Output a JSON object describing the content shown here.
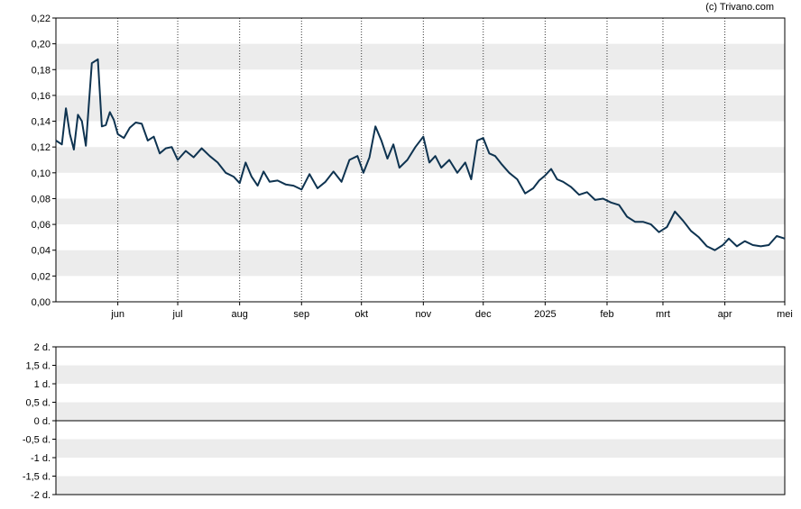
{
  "credit": "(c) Trivano.com",
  "chart_data": [
    {
      "type": "line",
      "title": "",
      "xlabel": "",
      "ylabel": "",
      "ylim": [
        0,
        0.22
      ],
      "y_ticks": [
        "0,00",
        "0,02",
        "0,04",
        "0,06",
        "0,08",
        "0,10",
        "0,12",
        "0,14",
        "0,16",
        "0,18",
        "0,20",
        "0,22"
      ],
      "x_tick_labels": [
        "jun",
        "jul",
        "aug",
        "sep",
        "okt",
        "nov",
        "dec",
        "2025",
        "feb",
        "mrt",
        "apr",
        "mei"
      ],
      "x_range": [
        "2024-05-01",
        "2025-05-01"
      ],
      "grid": "alternating horizontal bands, dotted vertical lines at month starts",
      "line_color": "#0e3350",
      "series": [
        {
          "x": [
            "2024-05-01",
            "2024-05-04",
            "2024-05-06",
            "2024-05-08",
            "2024-05-10",
            "2024-05-12",
            "2024-05-14",
            "2024-05-16",
            "2024-05-19",
            "2024-05-22",
            "2024-05-24",
            "2024-05-26",
            "2024-05-28",
            "2024-05-30",
            "2024-06-01",
            "2024-06-04",
            "2024-06-07",
            "2024-06-10",
            "2024-06-13",
            "2024-06-16",
            "2024-06-19",
            "2024-06-22",
            "2024-06-25",
            "2024-06-28",
            "2024-07-01",
            "2024-07-05",
            "2024-07-09",
            "2024-07-13",
            "2024-07-17",
            "2024-07-21",
            "2024-07-25",
            "2024-07-29",
            "2024-08-01",
            "2024-08-04",
            "2024-08-07",
            "2024-08-10",
            "2024-08-13",
            "2024-08-16",
            "2024-08-20",
            "2024-08-24",
            "2024-08-28",
            "2024-09-01",
            "2024-09-05",
            "2024-09-09",
            "2024-09-13",
            "2024-09-17",
            "2024-09-21",
            "2024-09-25",
            "2024-09-29",
            "2024-10-02",
            "2024-10-05",
            "2024-10-08",
            "2024-10-11",
            "2024-10-14",
            "2024-10-17",
            "2024-10-20",
            "2024-10-24",
            "2024-10-28",
            "2024-11-01",
            "2024-11-04",
            "2024-11-07",
            "2024-11-10",
            "2024-11-14",
            "2024-11-18",
            "2024-11-22",
            "2024-11-25",
            "2024-11-28",
            "2024-12-01",
            "2024-12-04",
            "2024-12-07",
            "2024-12-10",
            "2024-12-14",
            "2024-12-18",
            "2024-12-22",
            "2024-12-26",
            "2024-12-29",
            "2025-01-01",
            "2025-01-04",
            "2025-01-07",
            "2025-01-10",
            "2025-01-14",
            "2025-01-18",
            "2025-01-22",
            "2025-01-26",
            "2025-01-30",
            "2025-02-03",
            "2025-02-07",
            "2025-02-11",
            "2025-02-15",
            "2025-02-19",
            "2025-02-23",
            "2025-02-27",
            "2025-03-03",
            "2025-03-07",
            "2025-03-11",
            "2025-03-15",
            "2025-03-19",
            "2025-03-23",
            "2025-03-27",
            "2025-03-31",
            "2025-04-03",
            "2025-04-07",
            "2025-04-11",
            "2025-04-15",
            "2025-04-19",
            "2025-04-23",
            "2025-04-27",
            "2025-05-01"
          ],
          "values": [
            0.125,
            0.122,
            0.15,
            0.13,
            0.118,
            0.145,
            0.14,
            0.121,
            0.185,
            0.188,
            0.136,
            0.137,
            0.147,
            0.141,
            0.13,
            0.127,
            0.135,
            0.139,
            0.138,
            0.125,
            0.128,
            0.115,
            0.119,
            0.12,
            0.11,
            0.117,
            0.112,
            0.119,
            0.113,
            0.108,
            0.1,
            0.097,
            0.092,
            0.108,
            0.097,
            0.09,
            0.101,
            0.093,
            0.094,
            0.091,
            0.09,
            0.087,
            0.099,
            0.088,
            0.093,
            0.101,
            0.093,
            0.11,
            0.113,
            0.1,
            0.112,
            0.136,
            0.125,
            0.111,
            0.122,
            0.104,
            0.11,
            0.12,
            0.128,
            0.108,
            0.113,
            0.104,
            0.11,
            0.1,
            0.108,
            0.095,
            0.125,
            0.127,
            0.115,
            0.113,
            0.107,
            0.1,
            0.095,
            0.084,
            0.088,
            0.094,
            0.098,
            0.103,
            0.095,
            0.093,
            0.089,
            0.083,
            0.085,
            0.079,
            0.08,
            0.077,
            0.075,
            0.066,
            0.062,
            0.062,
            0.06,
            0.054,
            0.058,
            0.07,
            0.063,
            0.055,
            0.05,
            0.043,
            0.04,
            0.044,
            0.049,
            0.043,
            0.047,
            0.044,
            0.043,
            0.044,
            0.051,
            0.049
          ]
        }
      ]
    },
    {
      "type": "line",
      "title": "",
      "ylim": [
        -2,
        2
      ],
      "y_ticks": [
        "-2 d.",
        "-1,5 d.",
        "-1 d.",
        "-0,5 d.",
        "0 d.",
        "0,5 d.",
        "1 d.",
        "1,5 d.",
        "2 d."
      ],
      "series": []
    }
  ]
}
